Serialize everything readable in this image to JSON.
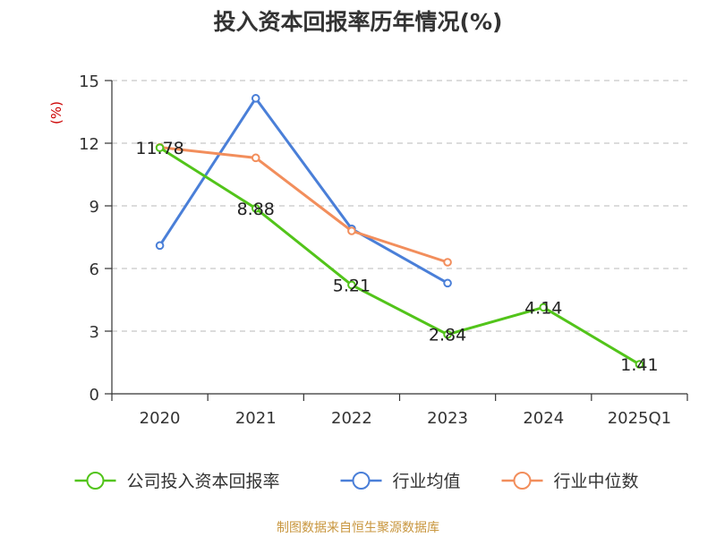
{
  "chart_data": {
    "type": "line",
    "title": "投入资本回报率历年情况(%)",
    "ylabel": "(%)",
    "categories": [
      "2020",
      "2021",
      "2022",
      "2023",
      "2024",
      "2025Q1"
    ],
    "ylim": [
      0,
      15
    ],
    "yticks": [
      "0",
      "3",
      "6",
      "9",
      "12",
      "15"
    ],
    "grid": true,
    "legend_position": "bottom",
    "series": [
      {
        "name": "公司投入资本回报率",
        "color": "#52c41a",
        "values": [
          11.78,
          8.88,
          5.21,
          2.84,
          4.14,
          1.41
        ],
        "labels": [
          "11.78",
          "8.88",
          "5.21",
          "2.84",
          "4.14",
          "1.41"
        ]
      },
      {
        "name": "行业均值",
        "color": "#4a7fd8",
        "values": [
          7.1,
          14.15,
          7.9,
          5.3,
          null,
          null
        ]
      },
      {
        "name": "行业中位数",
        "color": "#f28e5c",
        "values": [
          11.8,
          11.3,
          7.8,
          6.3,
          null,
          null
        ]
      }
    ]
  },
  "source": "制图数据来自恒生聚源数据库"
}
